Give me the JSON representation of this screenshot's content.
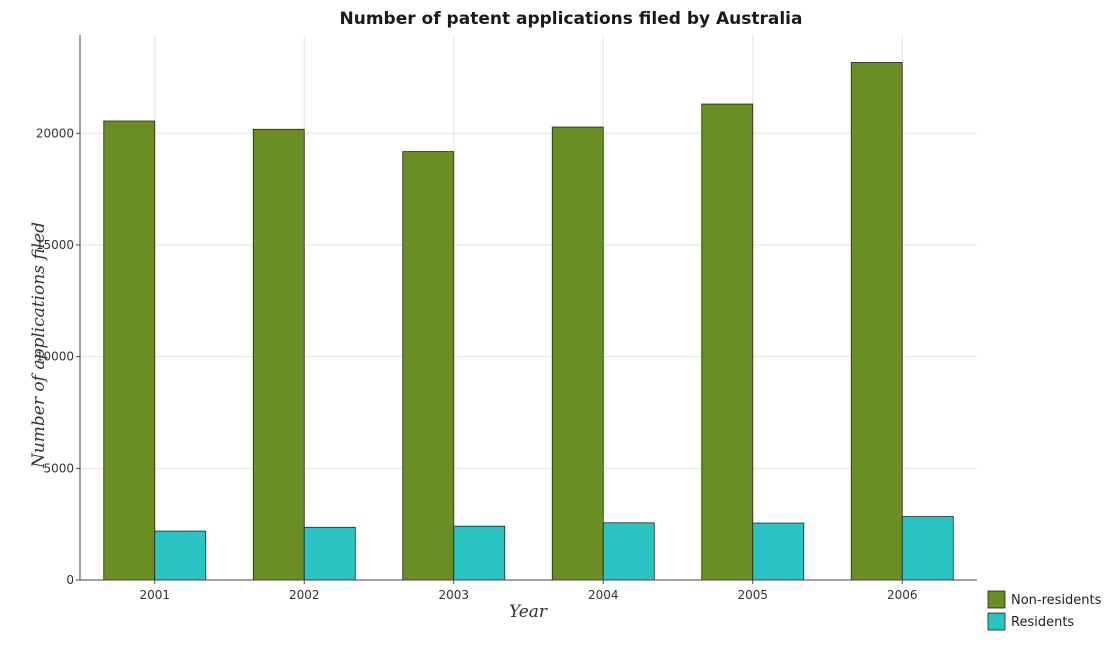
{
  "chart_data": {
    "type": "bar",
    "title": "Number of patent applications filed by Australia",
    "xlabel": "Year",
    "ylabel": "Number of applications filed",
    "categories": [
      "2001",
      "2002",
      "2003",
      "2004",
      "2005",
      "2006"
    ],
    "series": [
      {
        "name": "Non-residents",
        "color": "#6b8e23",
        "values": [
          20550,
          20180,
          19180,
          20280,
          21310,
          23170
        ]
      },
      {
        "name": "Residents",
        "color": "#2bc4c4",
        "values": [
          2190,
          2360,
          2410,
          2560,
          2550,
          2840
        ]
      }
    ],
    "ylim": [
      0,
      24400
    ],
    "yticks": [
      0,
      5000,
      10000,
      15000,
      20000
    ],
    "grid": true,
    "legend_position": "bottom-right"
  }
}
